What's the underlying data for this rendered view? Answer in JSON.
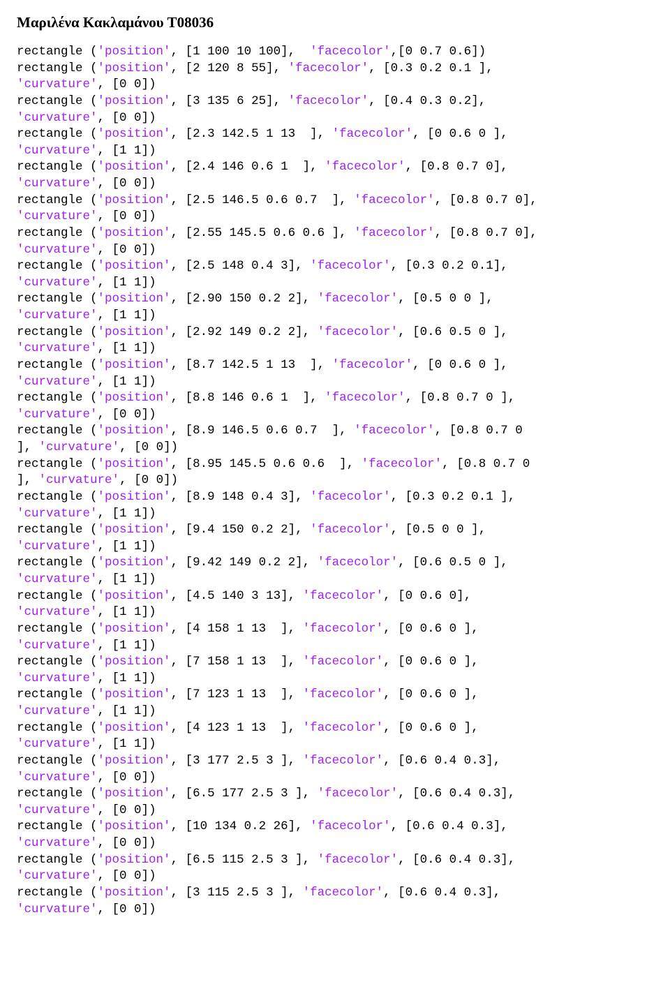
{
  "document": {
    "title": "Μαριλένα Κακλαμάνου Τ08036",
    "title_fontsize": 21,
    "title_fontweight": "bold",
    "code_fontfamily": "Courier New",
    "code_fontsize": 17.5,
    "string_color": "#a020f0",
    "text_color": "#000000",
    "background_color": "#ffffff",
    "statements": [
      {
        "fn": "rectangle ",
        "args": [
          {
            "key": "'position'",
            "val": "[1 100 10 100]",
            "c": ","
          },
          {
            "key": " 'facecolor'",
            "val": "[0 0.7 0.6]",
            "c": ","
          }
        ],
        "close": ")"
      },
      {
        "fn": "rectangle ",
        "args": [
          {
            "key": "'position'",
            "val": "[2 120 8 55]",
            "c": ", "
          },
          {
            "key": "'facecolor'",
            "val": "[0.3 0.2 0.1 ]",
            "c": ", "
          },
          {
            "key": "'curvature'",
            "val": "[0 0]",
            "c": ", ",
            "wrap": true
          }
        ],
        "close": ")"
      },
      {
        "fn": "rectangle ",
        "args": [
          {
            "key": "'position'",
            "val": "[3 135 6 25]",
            "c": ", "
          },
          {
            "key": "'facecolor'",
            "val": "[0.4 0.3 0.2]",
            "c": ", "
          },
          {
            "key": "'curvature'",
            "val": "[0 0]",
            "c": ", ",
            "wrap": true
          }
        ],
        "close": ")"
      },
      {
        "fn": "rectangle ",
        "args": [
          {
            "key": "'position'",
            "val": "[2.3 142.5 1 13  ]",
            "c": ", "
          },
          {
            "key": "'facecolor'",
            "val": "[0 0.6 0 ]",
            "c": ", "
          },
          {
            "key": "'curvature'",
            "val": "[1 1]",
            "c": ", ",
            "wrap": true
          }
        ],
        "close": ")"
      },
      {
        "fn": "rectangle ",
        "args": [
          {
            "key": "'position'",
            "val": "[2.4 146 0.6 1  ]",
            "c": ", "
          },
          {
            "key": "'facecolor'",
            "val": "[0.8 0.7 0]",
            "c": ", "
          },
          {
            "key": "'curvature'",
            "val": "[0 0]",
            "c": ", ",
            "wrap": true
          }
        ],
        "close": ")"
      },
      {
        "fn": "rectangle ",
        "args": [
          {
            "key": "'position'",
            "val": "[2.5 146.5 0.6 0.7  ]",
            "c": ", "
          },
          {
            "key": "'facecolor'",
            "val": "[0.8 0.7 0]",
            "c": ", "
          },
          {
            "key": "'curvature'",
            "val": "[0 0]",
            "c": ", ",
            "wrap": true
          }
        ],
        "close": ")"
      },
      {
        "fn": "rectangle ",
        "args": [
          {
            "key": "'position'",
            "val": "[2.55 145.5 0.6 0.6 ]",
            "c": ", "
          },
          {
            "key": "'facecolor'",
            "val": "[0.8 0.7 0]",
            "c": ", "
          },
          {
            "key": "'curvature'",
            "val": "[0 0]",
            "c": ", ",
            "wrap": true
          }
        ],
        "close": ")"
      },
      {
        "fn": "rectangle ",
        "args": [
          {
            "key": "'position'",
            "val": "[2.5 148 0.4 3]",
            "c": ", "
          },
          {
            "key": "'facecolor'",
            "val": "[0.3 0.2 0.1]",
            "c": ", "
          },
          {
            "key": "'curvature'",
            "val": "[1 1]",
            "c": ", ",
            "wrap": true
          }
        ],
        "close": ")"
      },
      {
        "fn": "rectangle ",
        "args": [
          {
            "key": "'position'",
            "val": "[2.90 150 0.2 2]",
            "c": ", "
          },
          {
            "key": "'facecolor'",
            "val": "[0.5 0 0 ]",
            "c": ", "
          },
          {
            "key": "'curvature'",
            "val": "[1 1]",
            "c": ", ",
            "wrap": true
          }
        ],
        "close": ")"
      },
      {
        "fn": "rectangle ",
        "args": [
          {
            "key": "'position'",
            "val": "[2.92 149 0.2 2]",
            "c": ", "
          },
          {
            "key": "'facecolor'",
            "val": "[0.6 0.5 0 ]",
            "c": ", "
          },
          {
            "key": "'curvature'",
            "val": "[1 1]",
            "c": ", ",
            "wrap": true
          }
        ],
        "close": ")"
      },
      {
        "fn": "rectangle ",
        "args": [
          {
            "key": "'position'",
            "val": "[8.7 142.5 1 13  ]",
            "c": ", "
          },
          {
            "key": "'facecolor'",
            "val": "[0 0.6 0 ]",
            "c": ", "
          },
          {
            "key": "'curvature'",
            "val": "[1 1]",
            "c": ", ",
            "wrap": true
          }
        ],
        "close": ")"
      },
      {
        "fn": "rectangle ",
        "args": [
          {
            "key": "'position'",
            "val": "[8.8 146 0.6 1  ]",
            "c": ", "
          },
          {
            "key": "'facecolor'",
            "val": "[0.8 0.7 0 ]",
            "c": ", "
          },
          {
            "key": "'curvature'",
            "val": "[0 0]",
            "c": ", ",
            "wrap": true
          }
        ],
        "close": ")"
      },
      {
        "fn": "rectangle ",
        "args": [
          {
            "key": "'position'",
            "val": "[8.9 146.5 0.6 0.7  ]",
            "c": ", "
          },
          {
            "key": "'facecolor'",
            "val": "[0.8 0.7 0 ]",
            "c": ", "
          },
          {
            "key": "'curvature'",
            "val": "[0 0]",
            "c": ", ",
            "wap2": true
          }
        ],
        "close": ")"
      },
      {
        "fn": "rectangle ",
        "args": [
          {
            "key": "'position'",
            "val": "[8.95 145.5 0.6 0.6  ]",
            "c": ", "
          },
          {
            "key": "'facecolor'",
            "val": "[0.8 0.7 0 ]",
            "c": ", "
          },
          {
            "key": "'curvature'",
            "val": "[0 0]",
            "c": ", ",
            "wap2": true
          }
        ],
        "close": ")"
      },
      {
        "fn": "rectangle ",
        "args": [
          {
            "key": "'position'",
            "val": "[8.9 148 0.4 3]",
            "c": ", "
          },
          {
            "key": "'facecolor'",
            "val": "[0.3 0.2 0.1 ]",
            "c": ", "
          },
          {
            "key": "'curvature'",
            "val": "[1 1]",
            "c": ", ",
            "wrap": true
          }
        ],
        "close": ")"
      },
      {
        "fn": "rectangle ",
        "args": [
          {
            "key": "'position'",
            "val": "[9.4 150 0.2 2]",
            "c": ", "
          },
          {
            "key": "'facecolor'",
            "val": "[0.5 0 0 ]",
            "c": ", "
          },
          {
            "key": "'curvature'",
            "val": "[1 1]",
            "c": ", ",
            "wrap": true
          }
        ],
        "close": ")"
      },
      {
        "fn": "rectangle ",
        "args": [
          {
            "key": "'position'",
            "val": "[9.42 149 0.2 2]",
            "c": ", "
          },
          {
            "key": "'facecolor'",
            "val": "[0.6 0.5 0 ]",
            "c": ", "
          },
          {
            "key": "'curvature'",
            "val": "[1 1]",
            "c": ", ",
            "wrap": true
          }
        ],
        "close": ")"
      },
      {
        "fn": "rectangle ",
        "args": [
          {
            "key": "'position'",
            "val": "[4.5 140 3 13]",
            "c": ", "
          },
          {
            "key": "'facecolor'",
            "val": "[0 0.6 0]",
            "c": ", "
          },
          {
            "key": "'curvature'",
            "val": "[1 1]",
            "c": ", ",
            "wrap": true
          }
        ],
        "close": ")"
      },
      {
        "fn": "rectangle ",
        "args": [
          {
            "key": "'position'",
            "val": "[4 158 1 13  ]",
            "c": ", "
          },
          {
            "key": "'facecolor'",
            "val": "[0 0.6 0 ]",
            "c": ", "
          },
          {
            "key": "'curvature'",
            "val": "[1 1]",
            "c": ", ",
            "wrap": true
          }
        ],
        "close": ")"
      },
      {
        "fn": "rectangle ",
        "args": [
          {
            "key": "'position'",
            "val": "[7 158 1 13  ]",
            "c": ", "
          },
          {
            "key": "'facecolor'",
            "val": "[0 0.6 0 ]",
            "c": ", "
          },
          {
            "key": "'curvature'",
            "val": "[1 1]",
            "c": ", ",
            "wrap": true
          }
        ],
        "close": ")"
      },
      {
        "fn": "rectangle ",
        "args": [
          {
            "key": "'position'",
            "val": "[7 123 1 13  ]",
            "c": ", "
          },
          {
            "key": "'facecolor'",
            "val": "[0 0.6 0 ]",
            "c": ", "
          },
          {
            "key": "'curvature'",
            "val": "[1 1]",
            "c": ", ",
            "wrap": true
          }
        ],
        "close": ")"
      },
      {
        "fn": "rectangle ",
        "args": [
          {
            "key": "'position'",
            "val": "[4 123 1 13  ]",
            "c": ", "
          },
          {
            "key": "'facecolor'",
            "val": "[0 0.6 0 ]",
            "c": ", "
          },
          {
            "key": "'curvature'",
            "val": "[1 1]",
            "c": ", ",
            "wrap": true
          }
        ],
        "close": ")"
      },
      {
        "fn": "rectangle ",
        "args": [
          {
            "key": "'position'",
            "val": "[3 177 2.5 3 ]",
            "c": ", "
          },
          {
            "key": "'facecolor'",
            "val": "[0.6 0.4 0.3]",
            "c": ", "
          },
          {
            "key": "'curvature'",
            "val": "[0 0]",
            "c": ", ",
            "wrap": true
          }
        ],
        "close": ")"
      },
      {
        "fn": "rectangle ",
        "args": [
          {
            "key": "'position'",
            "val": "[6.5 177 2.5 3 ]",
            "c": ", "
          },
          {
            "key": "'facecolor'",
            "val": "[0.6 0.4 0.3]",
            "c": ", "
          },
          {
            "key": "'curvature'",
            "val": "[0 0]",
            "c": ", ",
            "wrap": true
          }
        ],
        "close": ")"
      },
      {
        "fn": "rectangle ",
        "args": [
          {
            "key": "'position'",
            "val": "[10 134 0.2 26]",
            "c": ", "
          },
          {
            "key": "'facecolor'",
            "val": "[0.6 0.4 0.3]",
            "c": ", "
          },
          {
            "key": "'curvature'",
            "val": "[0 0]",
            "c": ", ",
            "wrap": true
          }
        ],
        "close": ")"
      },
      {
        "fn": "rectangle ",
        "args": [
          {
            "key": "'position'",
            "val": "[6.5 115 2.5 3 ]",
            "c": ", "
          },
          {
            "key": "'facecolor'",
            "val": "[0.6 0.4 0.3]",
            "c": ", "
          },
          {
            "key": "'curvature'",
            "val": "[0 0]",
            "c": ", ",
            "wrap": true
          }
        ],
        "close": ")"
      },
      {
        "fn": "rectangle ",
        "args": [
          {
            "key": "'position'",
            "val": "[3 115 2.5 3 ]",
            "c": ", "
          },
          {
            "key": "'facecolor'",
            "val": "[0.6 0.4 0.3]",
            "c": ", "
          },
          {
            "key": "'curvature'",
            "val": "[0 0]",
            "c": ", ",
            "wrap": true
          }
        ],
        "close": ")"
      }
    ]
  }
}
